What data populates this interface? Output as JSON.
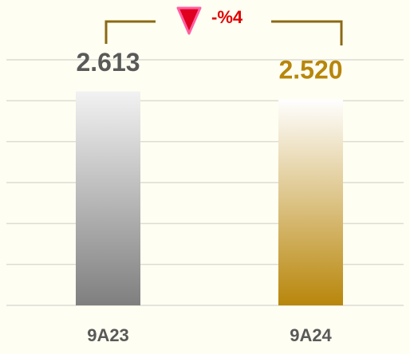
{
  "chart_data": {
    "type": "bar",
    "categories": [
      "9A23",
      "9A24"
    ],
    "values": [
      2.613,
      2.52
    ],
    "value_labels": [
      "2.613",
      "2.520"
    ],
    "colors": [
      "#7f7f7f",
      "#b8860b"
    ],
    "label_colors": [
      "#595959",
      "#b8860b"
    ],
    "annotation": "-%4",
    "ylim": [
      0,
      3
    ],
    "yticks": [
      0,
      0.5,
      1,
      1.5,
      2,
      2.5,
      3
    ],
    "grid": true
  }
}
